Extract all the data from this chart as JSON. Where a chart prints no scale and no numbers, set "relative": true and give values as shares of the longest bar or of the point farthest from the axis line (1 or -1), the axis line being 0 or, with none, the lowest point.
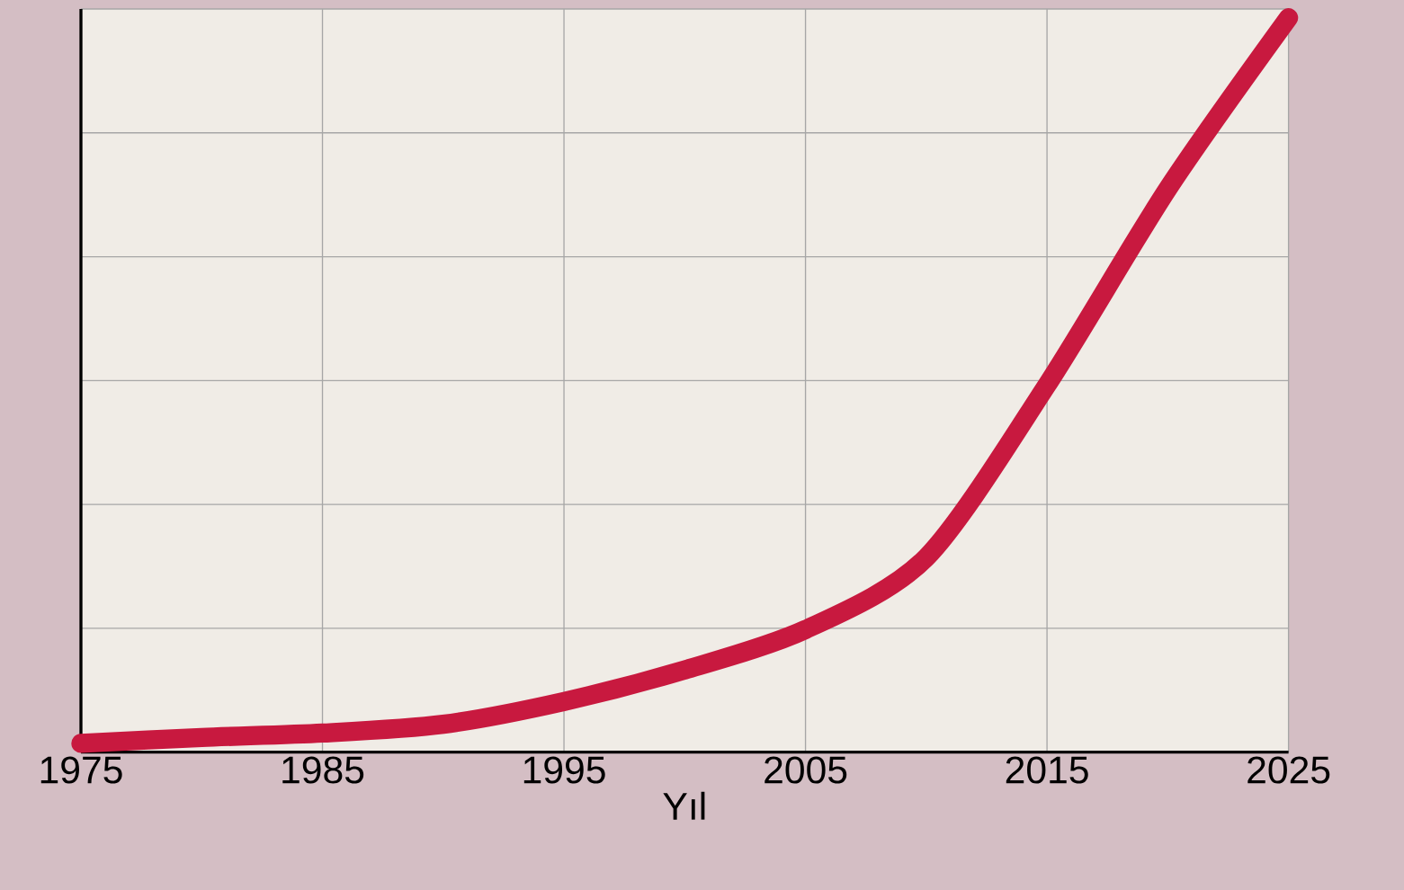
{
  "chart_data": {
    "type": "line",
    "xlabel": "Yıl",
    "relative": true,
    "x": [
      1975,
      1980,
      1985,
      1990,
      1995,
      2000,
      2005,
      2010,
      2015,
      2020,
      2025
    ],
    "series": [
      {
        "color": "#c8193f",
        "values": [
          0.012,
          0.02,
          0.026,
          0.038,
          0.069,
          0.112,
          0.167,
          0.265,
          0.5,
          0.767,
          1
        ]
      }
    ],
    "xlim": [
      1975,
      2025
    ],
    "xticks": [
      1975,
      1985,
      1995,
      2005,
      2015,
      2025
    ],
    "grid": true,
    "line_style": "solid",
    "marker": "none"
  }
}
